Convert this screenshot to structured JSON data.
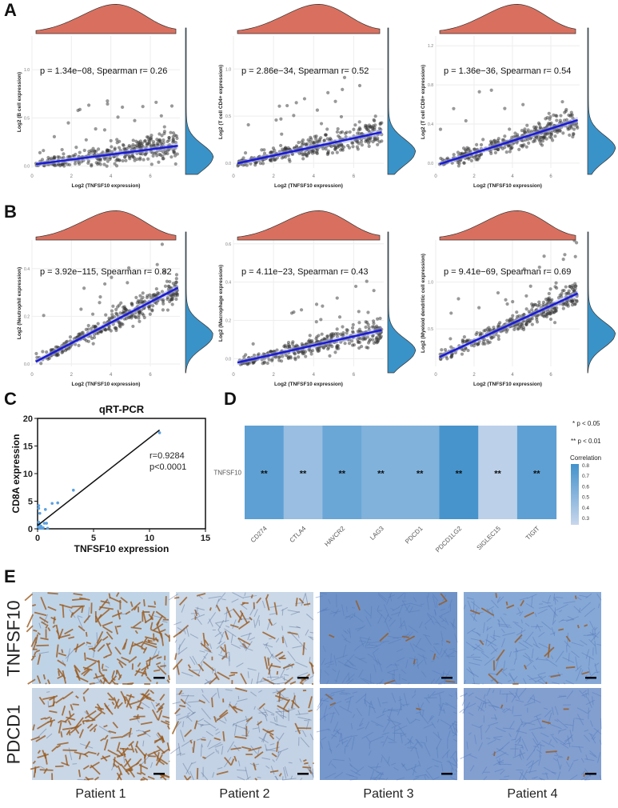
{
  "panels": {
    "a": "A",
    "b": "B",
    "c": "C",
    "d": "D",
    "e": "E"
  },
  "colors": {
    "points": "#333333",
    "fit": "#1a1ad6",
    "top_density": "#d9705f",
    "right_density": "#3a93c8",
    "qpcr_points": "#5aa0e0"
  },
  "chart_data": [
    {
      "id": "A1",
      "type": "scatter",
      "xlabel": "Log2 (TNFSF10 expression)",
      "ylabel": "Log2 (B cell expression)",
      "xticks": [
        0,
        2,
        4,
        6
      ],
      "yticks": [
        "0.0",
        "0.5",
        "1.0"
      ],
      "xlim": [
        0,
        7.5
      ],
      "ylim": [
        -0.02,
        1.35
      ],
      "fit": [
        [
          0.2,
          0.02
        ],
        [
          7.4,
          0.21
        ]
      ],
      "annotation": "p = 1.34e−08, Spearman r= 0.26"
    },
    {
      "id": "A2",
      "type": "scatter",
      "xlabel": "Log2 (TNFSF10 expression)",
      "ylabel": "Log2 (T cell CD4+ expression)",
      "xticks": [
        0,
        2,
        4,
        6
      ],
      "yticks": [
        "0.0",
        "0.5",
        "1.0"
      ],
      "xlim": [
        0,
        7.5
      ],
      "ylim": [
        -0.05,
        1.35
      ],
      "fit": [
        [
          0.2,
          0.0
        ],
        [
          7.4,
          0.33
        ]
      ],
      "annotation": "p = 2.86e−34, Spearman r= 0.52"
    },
    {
      "id": "A3",
      "type": "scatter",
      "xlabel": "Log2 (TNFSF10 expression)",
      "ylabel": "Log2 (T cell CD8+ expression)",
      "xticks": [
        0,
        2,
        4,
        6
      ],
      "yticks": [
        "0.0",
        "0.4",
        "0.8",
        "1.2"
      ],
      "xlim": [
        0,
        7.5
      ],
      "ylim": [
        -0.05,
        1.3
      ],
      "fit": [
        [
          0.2,
          -0.01
        ],
        [
          7.4,
          0.44
        ]
      ],
      "annotation": "p = 1.36e−36, Spearman r= 0.54"
    },
    {
      "id": "B1",
      "type": "scatter",
      "xlabel": "Log2 (TNFSF10 expression)",
      "ylabel": "Log2 (Neutrophil expression)",
      "xticks": [
        0,
        2,
        4,
        6
      ],
      "yticks": [
        "0.0",
        "0.2",
        "0.4"
      ],
      "xlim": [
        0,
        7.5
      ],
      "ylim": [
        -0.01,
        0.52
      ],
      "fit": [
        [
          0.2,
          0.01
        ],
        [
          7.4,
          0.32
        ]
      ],
      "annotation": "p = 3.92e−115, Spearman r= 0.82"
    },
    {
      "id": "B2",
      "type": "scatter",
      "xlabel": "Log2 (TNFSF10 expression)",
      "ylabel": "Log2 (Macrophage expression)",
      "xticks": [
        0,
        2,
        4,
        6
      ],
      "yticks": [
        "0.0",
        "0.2",
        "0.4",
        "0.6"
      ],
      "xlim": [
        0,
        7.5
      ],
      "ylim": [
        -0.04,
        0.62
      ],
      "fit": [
        [
          0.2,
          -0.02
        ],
        [
          7.4,
          0.15
        ]
      ],
      "annotation": "p = 4.11e−23, Spearman r= 0.43"
    },
    {
      "id": "B3",
      "type": "scatter",
      "xlabel": "Log2 (TNFSF10 expression)",
      "ylabel": "Log2 (Myeloid dendritic cell expression)",
      "xticks": [
        0,
        2,
        4,
        6
      ],
      "yticks": [
        "0.5",
        "1.0"
      ],
      "xlim": [
        0,
        7.5
      ],
      "ylim": [
        0.1,
        1.45
      ],
      "fit": [
        [
          0.2,
          0.2
        ],
        [
          7.4,
          0.88
        ]
      ],
      "annotation": "p = 9.41e−69, Spearman r= 0.69"
    },
    {
      "id": "C",
      "type": "scatter",
      "title": "qRT-PCR",
      "xlabel": "TNFSF10 expression",
      "ylabel": "CD8A expression",
      "xlim": [
        0,
        15
      ],
      "ylim": [
        0,
        20
      ],
      "xticks": [
        0,
        5,
        10,
        15
      ],
      "yticks": [
        0,
        5,
        10,
        15,
        20
      ],
      "points": [
        [
          10.9,
          17.4
        ],
        [
          3.2,
          7
        ],
        [
          1.3,
          4.6
        ],
        [
          1.8,
          4.7
        ],
        [
          0.7,
          3.5
        ],
        [
          0.1,
          4.2
        ],
        [
          0.1,
          3.7
        ],
        [
          0.2,
          2.8
        ],
        [
          0.1,
          1.2
        ],
        [
          0.3,
          0.5
        ],
        [
          0.6,
          1
        ],
        [
          0.8,
          1
        ],
        [
          0.5,
          0.2
        ],
        [
          0.9,
          0.1
        ],
        [
          0.2,
          0.1
        ],
        [
          0.05,
          0.3
        ],
        [
          0.4,
          0.1
        ],
        [
          0.15,
          0.8
        ]
      ],
      "fit": [
        [
          0,
          0.6
        ],
        [
          10.9,
          17.9
        ]
      ],
      "annotation": [
        "r=0.9284",
        "p<0.0001"
      ]
    },
    {
      "id": "D",
      "type": "heatmap",
      "row": "TNFSF10",
      "columns": [
        "CD274",
        "CTLA4",
        "HAVCR2",
        "LAG3",
        "PDCD1",
        "PDCD1LG2",
        "SIGLEC15",
        "TIGIT"
      ],
      "values": [
        0.7,
        0.45,
        0.65,
        0.55,
        0.55,
        0.8,
        0.3,
        0.7
      ],
      "marks": [
        "**",
        "**",
        "**",
        "**",
        "**",
        "**",
        "**",
        "**"
      ],
      "legend": {
        "sig1": "* p < 0.05",
        "sig2": "** p < 0.01",
        "title": "Correlation",
        "ticks": [
          "0.8",
          "0.7",
          "0.6",
          "0.5",
          "0.4",
          "0.3"
        ],
        "range": [
          0.25,
          0.82
        ]
      }
    }
  ],
  "ihc": {
    "rows": [
      "TNFSF10",
      "PDCD1"
    ],
    "patients": [
      "Patient 1",
      "Patient 2",
      "Patient 3",
      "Patient 4"
    ],
    "brown_staining": [
      [
        0.9,
        0.35,
        0.03,
        0.12
      ],
      [
        0.85,
        0.25,
        0.02,
        0.03
      ]
    ]
  }
}
